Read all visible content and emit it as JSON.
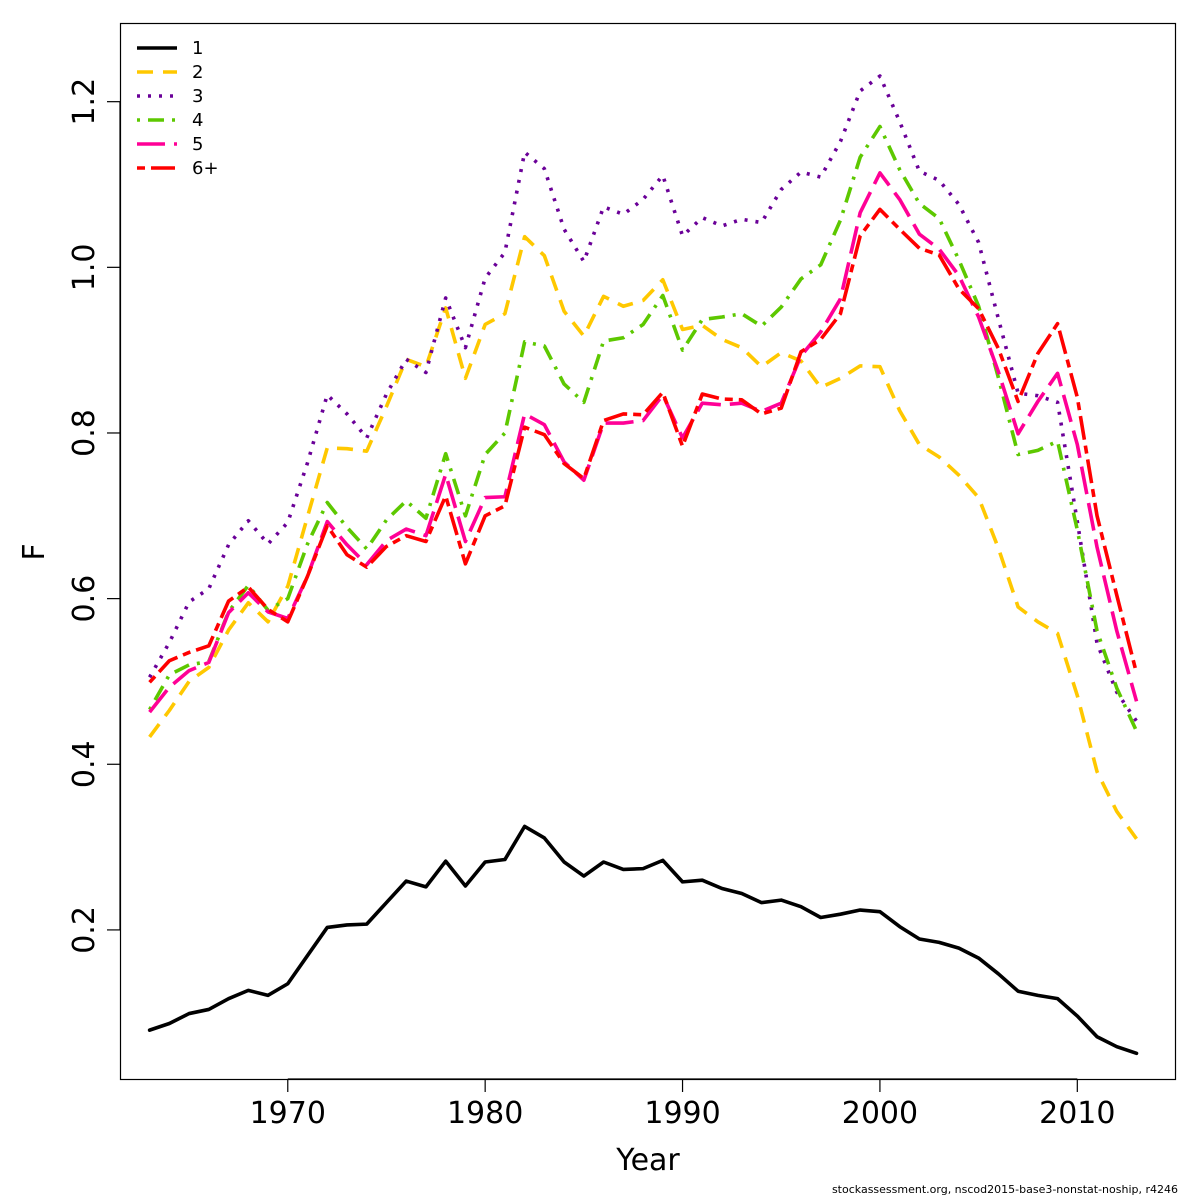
{
  "chart_data": {
    "type": "line",
    "title": "",
    "xlabel": "Year",
    "ylabel": "F",
    "xlim": [
      1961.5,
      2015
    ],
    "ylim": [
      0.02,
      1.295
    ],
    "xticks": [
      1970,
      1980,
      1990,
      2000,
      2010
    ],
    "yticks": [
      0.2,
      0.4,
      0.6,
      0.8,
      1.0,
      1.2
    ],
    "ytick_labels": [
      "0.2",
      "0.4",
      "0.6",
      "0.8",
      "1.0",
      "1.2"
    ],
    "grid": false,
    "legend_position": "top-left",
    "x": [
      1963,
      1964,
      1965,
      1966,
      1967,
      1968,
      1969,
      1970,
      1971,
      1972,
      1973,
      1974,
      1975,
      1976,
      1977,
      1978,
      1979,
      1980,
      1981,
      1982,
      1983,
      1984,
      1985,
      1986,
      1987,
      1988,
      1989,
      1990,
      1991,
      1992,
      1993,
      1994,
      1995,
      1996,
      1997,
      1998,
      1999,
      2000,
      2001,
      2002,
      2003,
      2004,
      2005,
      2006,
      2007,
      2008,
      2009,
      2010,
      2011,
      2012,
      2013
    ],
    "series": [
      {
        "name": "1",
        "color": "#000000",
        "dash": "solid",
        "values": [
          0.079,
          0.087,
          0.099,
          0.104,
          0.117,
          0.127,
          0.121,
          0.135,
          0.169,
          0.203,
          0.206,
          0.207,
          0.233,
          0.259,
          0.252,
          0.283,
          0.253,
          0.282,
          0.285,
          0.325,
          0.311,
          0.282,
          0.265,
          0.282,
          0.273,
          0.274,
          0.284,
          0.258,
          0.26,
          0.25,
          0.244,
          0.233,
          0.236,
          0.228,
          0.215,
          0.219,
          0.224,
          0.222,
          0.204,
          0.189,
          0.185,
          0.178,
          0.166,
          0.147,
          0.126,
          0.121,
          0.117,
          0.096,
          0.071,
          0.059,
          0.051
        ]
      },
      {
        "name": "2",
        "color": "#ffc800",
        "dash": "dashed",
        "values": [
          0.433,
          0.465,
          0.5,
          0.517,
          0.562,
          0.595,
          0.572,
          0.615,
          0.699,
          0.782,
          0.781,
          0.778,
          0.832,
          0.889,
          0.88,
          0.951,
          0.866,
          0.931,
          0.944,
          1.037,
          1.014,
          0.947,
          0.917,
          0.965,
          0.953,
          0.96,
          0.985,
          0.925,
          0.93,
          0.913,
          0.903,
          0.88,
          0.897,
          0.887,
          0.855,
          0.866,
          0.881,
          0.88,
          0.827,
          0.786,
          0.771,
          0.749,
          0.722,
          0.661,
          0.59,
          0.572,
          0.558,
          0.483,
          0.391,
          0.343,
          0.31
        ]
      },
      {
        "name": "3",
        "color": "#6a0098",
        "dash": "dotted",
        "values": [
          0.505,
          0.547,
          0.596,
          0.612,
          0.665,
          0.694,
          0.666,
          0.692,
          0.764,
          0.846,
          0.823,
          0.794,
          0.847,
          0.889,
          0.873,
          0.963,
          0.903,
          0.987,
          1.018,
          1.139,
          1.119,
          1.046,
          1.007,
          1.073,
          1.064,
          1.082,
          1.111,
          1.038,
          1.06,
          1.05,
          1.058,
          1.054,
          1.094,
          1.115,
          1.109,
          1.152,
          1.213,
          1.231,
          1.176,
          1.116,
          1.105,
          1.076,
          1.03,
          0.938,
          0.848,
          0.845,
          0.837,
          0.693,
          0.546,
          0.487,
          0.452
        ]
      },
      {
        "name": "4",
        "color": "#5dc800",
        "dash": "dashdot",
        "values": [
          0.466,
          0.508,
          0.52,
          0.524,
          0.584,
          0.616,
          0.586,
          0.6,
          0.666,
          0.716,
          0.686,
          0.66,
          0.695,
          0.718,
          0.697,
          0.775,
          0.7,
          0.774,
          0.8,
          0.91,
          0.905,
          0.859,
          0.837,
          0.911,
          0.915,
          0.931,
          0.966,
          0.9,
          0.937,
          0.94,
          0.944,
          0.929,
          0.952,
          0.986,
          1.003,
          1.057,
          1.133,
          1.17,
          1.118,
          1.077,
          1.059,
          1.009,
          0.953,
          0.867,
          0.774,
          0.779,
          0.79,
          0.683,
          0.561,
          0.492,
          0.44
        ]
      },
      {
        "name": "5",
        "color": "#ff0096",
        "dash": "longdash",
        "values": [
          0.463,
          0.493,
          0.513,
          0.523,
          0.583,
          0.607,
          0.584,
          0.576,
          0.627,
          0.693,
          0.665,
          0.641,
          0.67,
          0.684,
          0.676,
          0.75,
          0.669,
          0.722,
          0.723,
          0.823,
          0.81,
          0.765,
          0.743,
          0.812,
          0.812,
          0.815,
          0.846,
          0.794,
          0.836,
          0.834,
          0.836,
          0.826,
          0.836,
          0.893,
          0.922,
          0.962,
          1.066,
          1.114,
          1.082,
          1.04,
          1.022,
          0.99,
          0.94,
          0.874,
          0.799,
          0.838,
          0.872,
          0.786,
          0.662,
          0.561,
          0.476
        ]
      },
      {
        "name": "6+",
        "color": "#ff0000",
        "dash": "twodash",
        "values": [
          0.499,
          0.525,
          0.535,
          0.543,
          0.597,
          0.614,
          0.587,
          0.572,
          0.627,
          0.688,
          0.653,
          0.638,
          0.663,
          0.676,
          0.669,
          0.724,
          0.642,
          0.7,
          0.712,
          0.807,
          0.798,
          0.763,
          0.745,
          0.815,
          0.823,
          0.822,
          0.849,
          0.784,
          0.847,
          0.841,
          0.84,
          0.823,
          0.83,
          0.898,
          0.913,
          0.944,
          1.038,
          1.07,
          1.046,
          1.023,
          1.015,
          0.974,
          0.95,
          0.902,
          0.838,
          0.896,
          0.932,
          0.843,
          0.7,
          0.604,
          0.51
        ]
      }
    ]
  },
  "footer_text": "stockassessment.org, nscod2015-base3-nonstat-noship, r4246"
}
